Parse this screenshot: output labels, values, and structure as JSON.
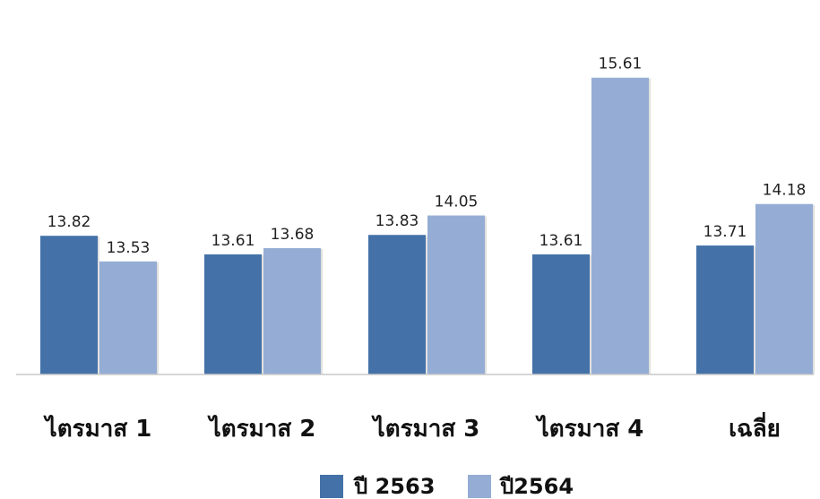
{
  "chart_data": {
    "type": "bar",
    "categories": [
      "ไตรมาส 1",
      "ไตรมาส 2",
      "ไตรมาส 3",
      "ไตรมาส 4",
      "เฉลี่ย"
    ],
    "series": [
      {
        "name": "ปี 2563",
        "values": [
          13.82,
          13.61,
          13.83,
          13.61,
          13.71
        ],
        "color": "#4472a8",
        "labels": [
          "13.82",
          "13.61",
          "13.83",
          "13.61",
          "13.71"
        ]
      },
      {
        "name": "ปี2564",
        "values": [
          13.53,
          13.68,
          14.05,
          15.61,
          14.18
        ],
        "color": "#95add4",
        "labels": [
          "13.53",
          "13.68",
          "14.05",
          "15.61",
          "14.18"
        ]
      }
    ],
    "ylim": [
      12.25,
      15.8
    ],
    "grid": false,
    "legend_position": "bottom"
  }
}
